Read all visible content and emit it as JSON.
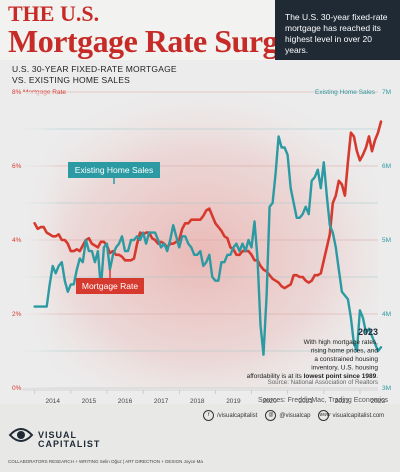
{
  "header": {
    "title_line1": "THE U.S.",
    "title_line2": "Mortgage Rate Surge",
    "callout": "The U.S. 30-year fixed-rate mortgage has reached its highest level in over 20 years.",
    "subtitle_line1": "U.S. 30-YEAR FIXED-RATE MORTGAGE",
    "subtitle_line2": "VS. EXISTING HOME SALES"
  },
  "colors": {
    "mortgage": "#d63a2f",
    "sales": "#2b9aa3",
    "title": "#c62b27",
    "navy": "#1f2a35"
  },
  "chart_data": {
    "type": "line",
    "x_start": "2014-01",
    "x_step": "month",
    "xticks": [
      "2014",
      "2015",
      "2016",
      "2017",
      "2018",
      "2019",
      "2020",
      "2021",
      "2022",
      "2023"
    ],
    "left_axis": {
      "label": "Mortgage Rate",
      "ticks": [
        "0%",
        "2%",
        "4%",
        "6%",
        "8%"
      ],
      "ylim": [
        0,
        8
      ]
    },
    "right_axis": {
      "label": "Existing Home Sales",
      "ticks": [
        "3M",
        "4M",
        "5M",
        "6M",
        "7M"
      ],
      "ylim": [
        3,
        7
      ]
    },
    "series": [
      {
        "name": "Mortgage Rate",
        "axis": "left",
        "units": "%",
        "values": [
          4.45,
          4.3,
          4.35,
          4.35,
          4.2,
          4.15,
          4.1,
          4.1,
          4.15,
          4.0,
          4.0,
          3.9,
          3.7,
          3.7,
          3.75,
          3.7,
          3.85,
          4.0,
          4.05,
          3.9,
          3.85,
          3.8,
          3.95,
          3.95,
          3.85,
          3.65,
          3.7,
          3.6,
          3.6,
          3.55,
          3.45,
          3.45,
          3.45,
          3.5,
          3.9,
          4.2,
          4.15,
          4.2,
          4.2,
          4.05,
          4.0,
          3.9,
          3.95,
          3.9,
          3.8,
          3.9,
          3.9,
          3.95,
          4.0,
          4.3,
          4.45,
          4.45,
          4.55,
          4.55,
          4.55,
          4.55,
          4.65,
          4.8,
          4.85,
          4.65,
          4.45,
          4.35,
          4.25,
          4.1,
          4.05,
          3.8,
          3.75,
          3.6,
          3.6,
          3.7,
          3.7,
          3.7,
          3.6,
          3.45,
          3.45,
          3.3,
          3.2,
          3.15,
          3.05,
          2.95,
          2.9,
          2.85,
          2.75,
          2.7,
          2.75,
          2.8,
          3.05,
          3.05,
          3.0,
          3.0,
          2.9,
          2.85,
          2.9,
          3.05,
          3.05,
          3.1,
          3.45,
          3.8,
          4.15,
          5.0,
          5.2,
          5.6,
          5.5,
          5.2,
          6.1,
          6.9,
          6.8,
          6.4,
          6.15,
          6.3,
          6.5,
          6.8,
          6.4,
          6.7,
          6.9,
          7.2
        ]
      },
      {
        "name": "Existing Home Sales",
        "axis": "right",
        "units": "M",
        "values": [
          4.6,
          4.6,
          4.6,
          4.6,
          4.6,
          4.9,
          5.15,
          5.05,
          5.15,
          5.2,
          4.95,
          4.8,
          4.9,
          4.9,
          5.1,
          5.25,
          5.2,
          5.5,
          5.35,
          5.35,
          5.2,
          5.35,
          4.85,
          5.4,
          5.45,
          5.1,
          5.3,
          5.4,
          5.45,
          5.55,
          5.35,
          5.35,
          5.5,
          5.5,
          5.55,
          5.5,
          5.6,
          5.45,
          5.6,
          5.6,
          5.6,
          5.5,
          5.4,
          5.45,
          5.35,
          5.5,
          5.7,
          5.55,
          5.4,
          5.55,
          5.55,
          5.45,
          5.4,
          5.3,
          5.3,
          5.35,
          5.15,
          5.2,
          5.3,
          5.0,
          4.95,
          4.95,
          5.2,
          5.2,
          5.3,
          5.3,
          5.4,
          5.45,
          5.35,
          5.45,
          5.35,
          5.5,
          5.4,
          5.75,
          5.25,
          4.35,
          3.95,
          4.75,
          5.95,
          6.0,
          6.4,
          6.9,
          6.75,
          6.75,
          6.65,
          6.2,
          6.0,
          5.8,
          5.8,
          5.85,
          5.95,
          5.85,
          6.3,
          6.35,
          6.45,
          6.2,
          6.55,
          6.1,
          5.7,
          5.6,
          5.4,
          5.1,
          4.8,
          4.75,
          4.7,
          4.45,
          4.1,
          4.0,
          4.55,
          4.45,
          4.25,
          4.3,
          4.2,
          4.1,
          4.0,
          4.05
        ]
      }
    ],
    "annotations": [
      {
        "label": "Existing Home Sales"
      },
      {
        "label": "Mortgage Rate"
      }
    ],
    "note": {
      "year": "2023",
      "text_prefix": "With high mortgage rates, rising home prices, and a constrained housing inventory, U.S. housing affordability is at its ",
      "text_bold": "lowest point since 1989",
      "text_suffix": ".",
      "source": "Source: National Association of Realtors"
    }
  },
  "footer": {
    "sources": "Sources: FreddieMac, Trading Economics",
    "brand_line1": "VISUAL",
    "brand_line2": "CAPITALIST",
    "social": [
      {
        "icon": "f",
        "label": "/visualcapitalist"
      },
      {
        "icon": "@",
        "label": "@visualcap"
      },
      {
        "icon": "www",
        "label": "visualcapitalist.com"
      }
    ],
    "credits": "COLLABORATORS   RESEARCH + WRITING Selin Oğuz  |  ART DIRECTION + DESIGN Joyce Ma"
  }
}
